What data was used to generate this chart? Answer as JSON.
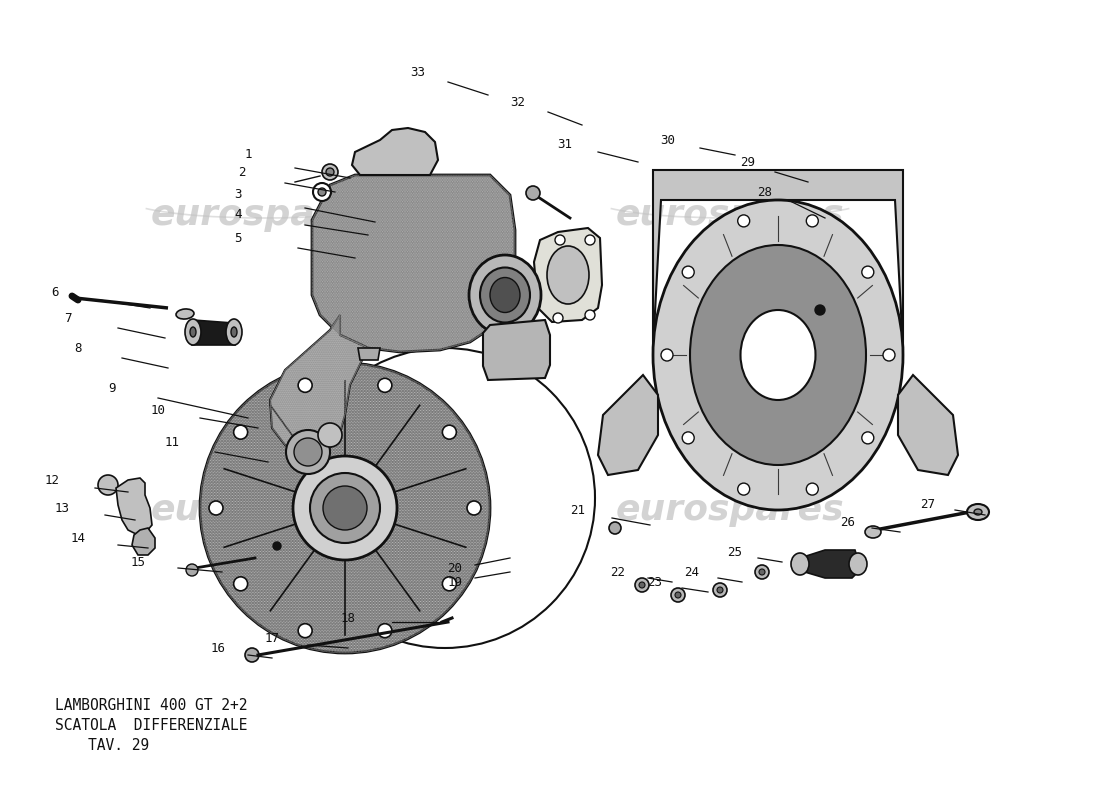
{
  "bg_color": "#ffffff",
  "title_line1": "LAMBORGHINI 400 GT 2+2",
  "title_line2": "SCATOLA  DIFFERENZIALE",
  "title_line3": "TAV. 29",
  "watermark": "eurospares",
  "labels": {
    "1": [
      248,
      155,
      295,
      168,
      350,
      178
    ],
    "2": [
      242,
      172,
      285,
      183,
      335,
      192
    ],
    "3": [
      238,
      195,
      305,
      208,
      375,
      222
    ],
    "4": [
      238,
      215,
      305,
      225,
      368,
      235
    ],
    "5": [
      238,
      238,
      298,
      248,
      355,
      258
    ],
    "6": [
      55,
      292,
      100,
      300,
      150,
      308
    ],
    "7": [
      68,
      318,
      118,
      328,
      165,
      338
    ],
    "8": [
      78,
      348,
      122,
      358,
      168,
      368
    ],
    "9": [
      112,
      388,
      158,
      398,
      248,
      418
    ],
    "10": [
      158,
      410,
      200,
      418,
      258,
      428
    ],
    "11": [
      172,
      442,
      215,
      452,
      268,
      462
    ],
    "12": [
      52,
      480,
      95,
      488,
      128,
      492
    ],
    "13": [
      62,
      508,
      105,
      515,
      135,
      520
    ],
    "14": [
      78,
      538,
      118,
      545,
      148,
      548
    ],
    "15": [
      138,
      562,
      178,
      568,
      222,
      572
    ],
    "16": [
      218,
      648,
      248,
      655,
      272,
      658
    ],
    "17": [
      272,
      638,
      308,
      645,
      348,
      648
    ],
    "18": [
      348,
      618,
      392,
      622,
      442,
      622
    ],
    "19": [
      455,
      582,
      475,
      578,
      510,
      572
    ],
    "20": [
      455,
      568,
      475,
      565,
      510,
      558
    ],
    "21": [
      578,
      510,
      612,
      518,
      650,
      525
    ],
    "22": [
      618,
      572,
      648,
      578,
      672,
      582
    ],
    "23": [
      655,
      582,
      682,
      588,
      708,
      592
    ],
    "24": [
      692,
      572,
      718,
      578,
      742,
      582
    ],
    "25": [
      735,
      552,
      758,
      558,
      782,
      562
    ],
    "26": [
      848,
      522,
      872,
      528,
      900,
      532
    ],
    "27": [
      928,
      505,
      955,
      510,
      985,
      515
    ],
    "28": [
      765,
      192,
      792,
      202,
      825,
      218
    ],
    "29": [
      748,
      162,
      775,
      172,
      808,
      182
    ],
    "30": [
      668,
      140,
      700,
      148,
      735,
      155
    ],
    "31": [
      565,
      145,
      598,
      152,
      638,
      162
    ],
    "32": [
      518,
      102,
      548,
      112,
      582,
      125
    ],
    "33": [
      418,
      72,
      448,
      82,
      488,
      95
    ]
  }
}
